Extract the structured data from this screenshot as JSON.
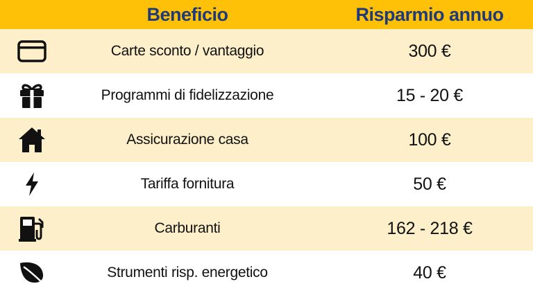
{
  "header": {
    "benefit_label": "Beneficio",
    "saving_label": "Risparmio annuo"
  },
  "rows": [
    {
      "icon": "credit-card-icon",
      "benefit": "Carte sconto / vantaggio",
      "saving": "300 €"
    },
    {
      "icon": "gift-icon",
      "benefit": "Programmi di fidelizzazione",
      "saving": "15 - 20 €"
    },
    {
      "icon": "house-icon",
      "benefit": "Assicurazione casa",
      "saving": "100 €"
    },
    {
      "icon": "lightning-bolt-icon",
      "benefit": "Tariffa fornitura",
      "saving": "50 €"
    },
    {
      "icon": "fuel-pump-icon",
      "benefit": "Carburanti",
      "saving": "162 - 218 €"
    },
    {
      "icon": "leaf-icon",
      "benefit": "Strumenti risp. energetico",
      "saving": "40 €"
    }
  ],
  "colors": {
    "header_bg": "#FFC107",
    "header_text": "#1f3a78",
    "alt_row_bg": "#FDEFC9",
    "icon_color": "#111111"
  }
}
